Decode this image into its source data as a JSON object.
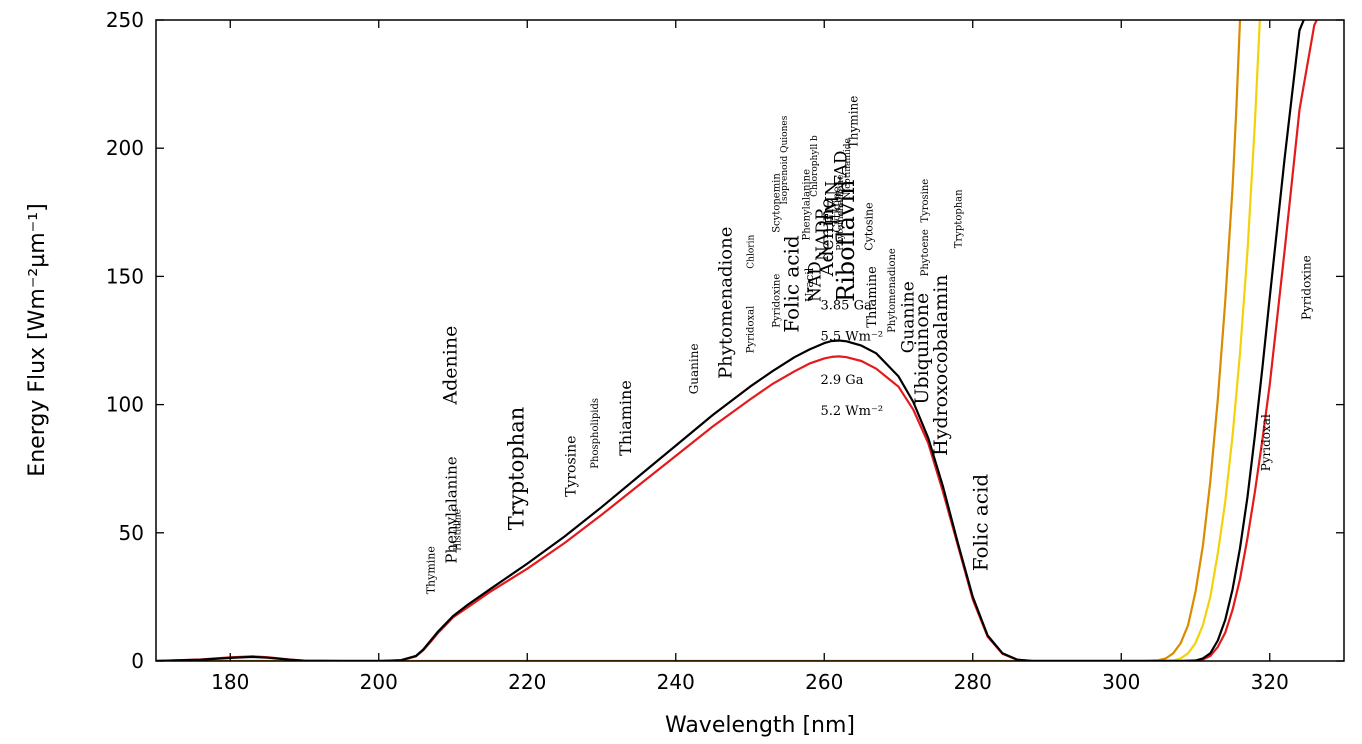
{
  "chart_data": {
    "type": "line",
    "xlabel": "Wavelength [nm]",
    "ylabel": "Energy Flux [Wm⁻²µm⁻¹]",
    "xlim": [
      170,
      330
    ],
    "ylim": [
      0,
      250
    ],
    "grid": false,
    "xticks": [
      180,
      200,
      220,
      240,
      260,
      280,
      300,
      320
    ],
    "yticks": [
      0,
      50,
      100,
      150,
      200,
      250
    ],
    "colors": {
      "black": "#000000",
      "red": "#e41a1c",
      "orange": "#d98c00",
      "yellow": "#f2d20a"
    },
    "series": [
      {
        "color": "#000000",
        "x": [
          170,
          176,
          180,
          183,
          185,
          188,
          190,
          195,
          200,
          203,
          205,
          206,
          207,
          208,
          209,
          210,
          212,
          215,
          220,
          225,
          230,
          235,
          240,
          245,
          250,
          253,
          256,
          258,
          260,
          261,
          262,
          263,
          265,
          267,
          270,
          272,
          274,
          276,
          278,
          280,
          282,
          284,
          286,
          288,
          300,
          305,
          308,
          310,
          311,
          312,
          313,
          314,
          315,
          316,
          317,
          318,
          319,
          320,
          322,
          324,
          326,
          328
        ],
        "y": [
          0,
          0.5,
          1.2,
          1.6,
          1.3,
          0.5,
          0.1,
          0,
          0,
          0.3,
          2,
          4.5,
          8,
          11.5,
          14.5,
          17.5,
          22,
          28,
          38,
          48.5,
          60,
          72,
          84,
          96,
          107,
          113,
          118.5,
          121.5,
          124,
          124.8,
          125,
          124.7,
          123,
          120,
          111,
          101,
          87,
          68,
          46,
          25,
          10,
          3,
          0.5,
          0,
          0,
          0,
          0,
          0.2,
          1,
          3,
          8,
          16,
          28,
          44,
          64,
          88,
          114,
          142,
          196,
          246,
          260,
          260
        ]
      },
      {
        "color": "#e41a1c",
        "x": [
          170,
          176,
          180,
          183,
          185,
          188,
          190,
          195,
          200,
          203,
          205,
          206,
          207,
          208,
          209,
          210,
          212,
          215,
          220,
          225,
          230,
          235,
          240,
          245,
          250,
          253,
          256,
          258,
          260,
          261,
          262,
          263,
          265,
          267,
          270,
          272,
          274,
          276,
          278,
          280,
          282,
          284,
          286,
          288,
          300,
          305,
          308,
          310,
          311,
          312,
          313,
          314,
          315,
          316,
          317,
          318,
          319,
          320,
          322,
          324,
          326,
          328
        ],
        "y": [
          0,
          0.6,
          1.4,
          1.8,
          1.5,
          0.6,
          0.1,
          0,
          0,
          0.3,
          1.8,
          4.2,
          7.5,
          11,
          14,
          17,
          21,
          27,
          36,
          46,
          57,
          68.5,
          80,
          91.5,
          102,
          108,
          113,
          116,
          118,
          118.6,
          118.8,
          118.5,
          117,
          114,
          107,
          98,
          85,
          66,
          45,
          24,
          9.5,
          2.8,
          0.5,
          0,
          0,
          0,
          0,
          0.1,
          0.6,
          2,
          5.5,
          11,
          20,
          32,
          48,
          66,
          86,
          108,
          160,
          215,
          248,
          260
        ]
      },
      {
        "color": "#d98c00",
        "x": [
          170,
          200,
          300,
          303,
          305,
          306,
          307,
          308,
          309,
          310,
          311,
          312,
          313,
          314,
          315,
          315.5,
          316,
          317
        ],
        "y": [
          0,
          0,
          0,
          0,
          0.3,
          1,
          3,
          7,
          14,
          27,
          45,
          70,
          102,
          140,
          185,
          215,
          250,
          300
        ]
      },
      {
        "color": "#f2d20a",
        "x": [
          170,
          200,
          300,
          305,
          307,
          308,
          309,
          310,
          311,
          312,
          313,
          314,
          315,
          316,
          317,
          318,
          319
        ],
        "y": [
          0,
          0,
          0,
          0,
          0.2,
          1,
          3,
          7,
          14,
          25,
          42,
          62,
          88,
          120,
          160,
          210,
          270
        ]
      }
    ],
    "annotations": [
      {
        "text": "3.85 Ga",
        "x": 259.5,
        "y": 137
      },
      {
        "text": "5.5 Wm⁻²",
        "x": 259.5,
        "y": 125
      },
      {
        "text": "2.9 Ga",
        "x": 259.5,
        "y": 108
      },
      {
        "text": "5.2 Wm⁻²",
        "x": 259.5,
        "y": 96
      }
    ],
    "molecule_labels": [
      {
        "text": "Thymine",
        "x": 207.5,
        "y": 26,
        "size": 11
      },
      {
        "text": "Phenylalanine",
        "x": 210.5,
        "y": 38,
        "size": 15
      },
      {
        "text": "Histidine",
        "x": 211,
        "y": 43,
        "size": 9
      },
      {
        "text": "Adenine",
        "x": 210.5,
        "y": 100,
        "size": 19
      },
      {
        "text": "Tryptophan",
        "x": 219.5,
        "y": 51,
        "size": 21
      },
      {
        "text": "Tyrosine",
        "x": 226.5,
        "y": 64,
        "size": 14
      },
      {
        "text": "Phospholipids",
        "x": 229.5,
        "y": 75,
        "size": 10
      },
      {
        "text": "Thiamine",
        "x": 234,
        "y": 80,
        "size": 16
      },
      {
        "text": "Guanine",
        "x": 243,
        "y": 104,
        "size": 12
      },
      {
        "text": "Phytomenadione",
        "x": 247.5,
        "y": 110,
        "size": 18
      },
      {
        "text": "Pyridoxal",
        "x": 250.5,
        "y": 120,
        "size": 10
      },
      {
        "text": "Chlorin",
        "x": 250.5,
        "y": 153,
        "size": 9
      },
      {
        "text": "Pyridoxine",
        "x": 254,
        "y": 130,
        "size": 10
      },
      {
        "text": "Scytonemin",
        "x": 254,
        "y": 167,
        "size": 10
      },
      {
        "text": "Isoprenoid Quiones",
        "x": 255,
        "y": 178,
        "size": 9
      },
      {
        "text": "Folic acid",
        "x": 256.5,
        "y": 128,
        "size": 20
      },
      {
        "text": "Phenylalanine",
        "x": 258,
        "y": 164,
        "size": 10
      },
      {
        "text": "Chlorophyll b",
        "x": 259,
        "y": 181,
        "size": 9
      },
      {
        "text": "Uracil",
        "x": 258.5,
        "y": 140,
        "size": 11
      },
      {
        "text": "NAD",
        "x": 259.5,
        "y": 140,
        "size": 17
      },
      {
        "text": "NADP",
        "x": 260.5,
        "y": 156,
        "size": 17
      },
      {
        "text": "Adenine",
        "x": 261.2,
        "y": 150,
        "size": 19
      },
      {
        "text": "FMN",
        "x": 261.8,
        "y": 170,
        "size": 17
      },
      {
        "text": "Cytidine",
        "x": 262.2,
        "y": 167,
        "size": 11
      },
      {
        "text": "Phytomenadione",
        "x": 262.5,
        "y": 160,
        "size": 9
      },
      {
        "text": "FAD",
        "x": 263,
        "y": 185,
        "size": 17
      },
      {
        "text": "Nicotinamide",
        "x": 263.5,
        "y": 180,
        "size": 9
      },
      {
        "text": "Riboflavin",
        "x": 264,
        "y": 140,
        "size": 24
      },
      {
        "text": "Thymine",
        "x": 264.5,
        "y": 200,
        "size": 12
      },
      {
        "text": "Cytosine",
        "x": 266.5,
        "y": 160,
        "size": 11
      },
      {
        "text": "Thiamine",
        "x": 267,
        "y": 130,
        "size": 13
      },
      {
        "text": "Phytomenadione",
        "x": 269.5,
        "y": 128,
        "size": 10
      },
      {
        "text": "Guanine",
        "x": 272,
        "y": 120,
        "size": 17
      },
      {
        "text": "Ubiquinone",
        "x": 274,
        "y": 100,
        "size": 19
      },
      {
        "text": "Phytoene",
        "x": 274,
        "y": 150,
        "size": 10
      },
      {
        "text": "Tyrosine",
        "x": 274,
        "y": 171,
        "size": 10
      },
      {
        "text": "Hydroxocobalamin",
        "x": 276.5,
        "y": 80,
        "size": 19
      },
      {
        "text": "Tryptophan",
        "x": 278.5,
        "y": 161,
        "size": 10
      },
      {
        "text": "Folic acid",
        "x": 282,
        "y": 35,
        "size": 20
      },
      {
        "text": "Pyridoxal",
        "x": 320,
        "y": 74,
        "size": 12
      },
      {
        "text": "Pyridoxine",
        "x": 325.5,
        "y": 133,
        "size": 12
      }
    ]
  }
}
